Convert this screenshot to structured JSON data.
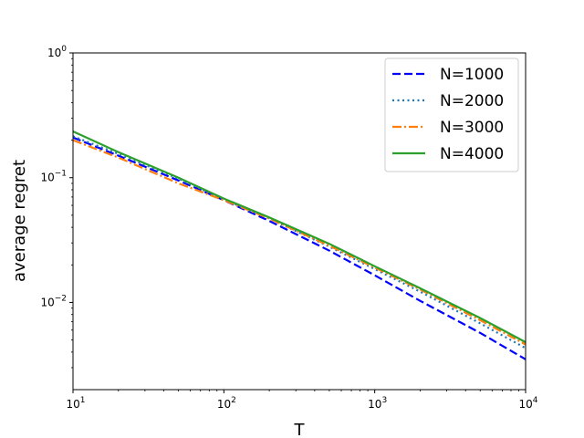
{
  "chart_data": {
    "type": "line",
    "title": "",
    "xlabel": "T",
    "ylabel": "average regret",
    "xscale": "log",
    "yscale": "log",
    "xlim": [
      10,
      10000
    ],
    "ylim": [
      0.002,
      1
    ],
    "x_ticks": [
      {
        "value": 10,
        "base": "10",
        "exp": "1"
      },
      {
        "value": 100,
        "base": "10",
        "exp": "2"
      },
      {
        "value": 1000,
        "base": "10",
        "exp": "3"
      },
      {
        "value": 10000,
        "base": "10",
        "exp": "4"
      }
    ],
    "y_ticks": [
      {
        "value": 0.01,
        "base": "10",
        "exp": "−2"
      },
      {
        "value": 0.1,
        "base": "10",
        "exp": "−1"
      },
      {
        "value": 1,
        "base": "10",
        "exp": "0"
      }
    ],
    "grid": false,
    "legend_position": "top-right",
    "x": [
      10,
      20,
      50,
      100,
      200,
      500,
      1000,
      2000,
      5000,
      10000
    ],
    "series": [
      {
        "name": "N=1000",
        "color": "#0000ff",
        "style": "dashed",
        "values": [
          0.21,
          0.15,
          0.095,
          0.066,
          0.045,
          0.026,
          0.0165,
          0.0103,
          0.0057,
          0.0035
        ]
      },
      {
        "name": "N=2000",
        "color": "#1f77b4",
        "style": "dotted",
        "values": [
          0.215,
          0.155,
          0.098,
          0.067,
          0.047,
          0.028,
          0.0185,
          0.0122,
          0.0068,
          0.0043
        ]
      },
      {
        "name": "N=3000",
        "color": "#ff7f0e",
        "style": "dashdot",
        "values": [
          0.2,
          0.145,
          0.09,
          0.066,
          0.047,
          0.0285,
          0.019,
          0.0127,
          0.0072,
          0.0046
        ]
      },
      {
        "name": "N=4000",
        "color": "#2ca02c",
        "style": "solid",
        "values": [
          0.235,
          0.16,
          0.1,
          0.068,
          0.048,
          0.0295,
          0.0195,
          0.013,
          0.0075,
          0.0048
        ]
      }
    ]
  }
}
